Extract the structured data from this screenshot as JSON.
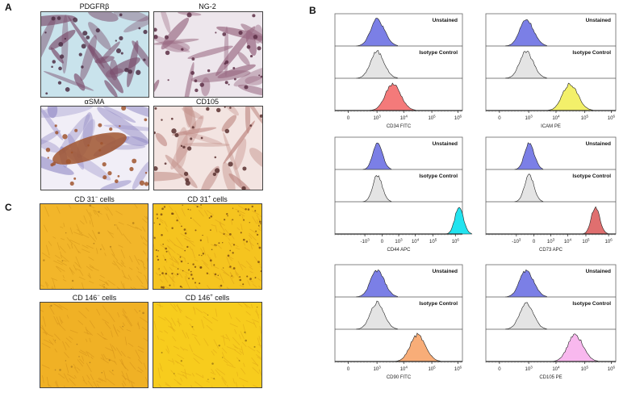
{
  "figure": {
    "panel_letters": {
      "a": "A",
      "b": "B",
      "c": "C"
    },
    "panel_a": {
      "images": [
        {
          "title": "PDGFRβ",
          "palette": [
            "#c9e3ec",
            "#7c4f6e",
            "#4e2f45"
          ]
        },
        {
          "title": "NG-2",
          "palette": [
            "#ede6ec",
            "#9a6a83",
            "#5d2f47"
          ]
        },
        {
          "title": "αSMA",
          "palette": [
            "#f1eef7",
            "#9890c8",
            "#a0552f"
          ]
        },
        {
          "title": "CD105",
          "palette": [
            "#f3e4e1",
            "#c08c86",
            "#5a3130"
          ]
        }
      ]
    },
    "panel_c": {
      "images": [
        {
          "title": "CD 31",
          "sup": "−",
          "suffix": " cells",
          "palette": [
            "#f2b62a",
            "#d89a1c",
            "#b5801a"
          ]
        },
        {
          "title": "CD 31",
          "sup": "+",
          "suffix": " cells",
          "palette": [
            "#f5c41f",
            "#dfa51b",
            "#7a4a12"
          ]
        },
        {
          "title": "CD 146",
          "sup": "−",
          "suffix": " cells",
          "palette": [
            "#f0b125",
            "#d8961c",
            "#b47f1e"
          ]
        },
        {
          "title": "CD 146",
          "sup": "+",
          "suffix": " cells",
          "palette": [
            "#f7cc1d",
            "#e3ad18",
            "#9a7414"
          ]
        }
      ]
    },
    "panel_b": {
      "track_labels": [
        "Unstained",
        "Isotype Control",
        ""
      ],
      "colors": {
        "unstained": "#7b7fe6",
        "isotype": "#e4e4e4",
        "outline": "#222222"
      }
    }
  },
  "chart_data": [
    {
      "type": "area",
      "title": "",
      "xlabel": "CD34 FITC",
      "ylabel": "",
      "x_ticks": [
        "0",
        "10^3",
        "10^4",
        "10^5",
        "10^6"
      ],
      "legend": [
        "Unstained",
        "Isotype Control",
        "CD34 FITC"
      ],
      "series": [
        {
          "name": "Unstained",
          "peak_x": "1.0e3",
          "color": "#7b7fe6"
        },
        {
          "name": "Isotype Control",
          "peak_x": "1.0e3",
          "color": "#e4e4e4"
        },
        {
          "name": "CD34 FITC",
          "peak_x": "4.0e3",
          "color": "#f47a7a"
        }
      ]
    },
    {
      "type": "area",
      "title": "",
      "xlabel": "ICAM PE",
      "ylabel": "",
      "x_ticks": [
        "0",
        "10^3",
        "10^4",
        "10^5",
        "10^6"
      ],
      "legend": [
        "Unstained",
        "Isotype Control",
        "ICAM PE"
      ],
      "series": [
        {
          "name": "Unstained",
          "peak_x": "8.0e2",
          "color": "#7b7fe6"
        },
        {
          "name": "Isotype Control",
          "peak_x": "8.0e2",
          "color": "#e4e4e4"
        },
        {
          "name": "ICAM PE",
          "peak_x": "3.5e4",
          "color": "#f3f06a"
        }
      ]
    },
    {
      "type": "area",
      "title": "",
      "xlabel": "CD44 APC",
      "ylabel": "",
      "x_ticks": [
        "-10^3",
        "0",
        "10^3",
        "10^4",
        "10^5",
        "10^6"
      ],
      "legend": [
        "Unstained",
        "Isotype Control",
        "CD44 APC"
      ],
      "series": [
        {
          "name": "Unstained",
          "peak_x": "-3e2",
          "color": "#7b7fe6"
        },
        {
          "name": "Isotype Control",
          "peak_x": "-3e2",
          "color": "#e4e4e4"
        },
        {
          "name": "CD44 APC",
          "peak_x": "5.0e5",
          "color": "#22e3ef"
        }
      ]
    },
    {
      "type": "area",
      "title": "",
      "xlabel": "CD73 APC",
      "ylabel": "",
      "x_ticks": [
        "-10^3",
        "0",
        "10^3",
        "10^4",
        "10^5",
        "10^6"
      ],
      "legend": [
        "Unstained",
        "Isotype Control",
        "CD73 APC"
      ],
      "series": [
        {
          "name": "Unstained",
          "peak_x": "-3e2",
          "color": "#7b7fe6"
        },
        {
          "name": "Isotype Control",
          "peak_x": "-3e2",
          "color": "#e4e4e4"
        },
        {
          "name": "CD73 APC",
          "peak_x": "9.0e4",
          "color": "#e06f6f"
        }
      ]
    },
    {
      "type": "area",
      "title": "",
      "xlabel": "CD90 FITC",
      "ylabel": "",
      "x_ticks": [
        "0",
        "10^3",
        "10^4",
        "10^5",
        "10^6"
      ],
      "legend": [
        "Unstained",
        "Isotype Control",
        "CD90 FITC"
      ],
      "series": [
        {
          "name": "Unstained",
          "peak_x": "1.0e3",
          "color": "#7b7fe6"
        },
        {
          "name": "Isotype Control",
          "peak_x": "1.0e3",
          "color": "#e4e4e4"
        },
        {
          "name": "CD90 FITC",
          "peak_x": "3.5e4",
          "color": "#f8ad78"
        }
      ]
    },
    {
      "type": "area",
      "title": "",
      "xlabel": "CD105 PE",
      "ylabel": "",
      "x_ticks": [
        "0",
        "10^3",
        "10^4",
        "10^5",
        "10^6"
      ],
      "legend": [
        "Unstained",
        "Isotype Control",
        "CD105 PE"
      ],
      "series": [
        {
          "name": "Unstained",
          "peak_x": "8.0e2",
          "color": "#7b7fe6"
        },
        {
          "name": "Isotype Control",
          "peak_x": "8.0e2",
          "color": "#e4e4e4"
        },
        {
          "name": "CD105 PE",
          "peak_x": "5.5e4",
          "color": "#f8b8ee"
        }
      ]
    }
  ]
}
